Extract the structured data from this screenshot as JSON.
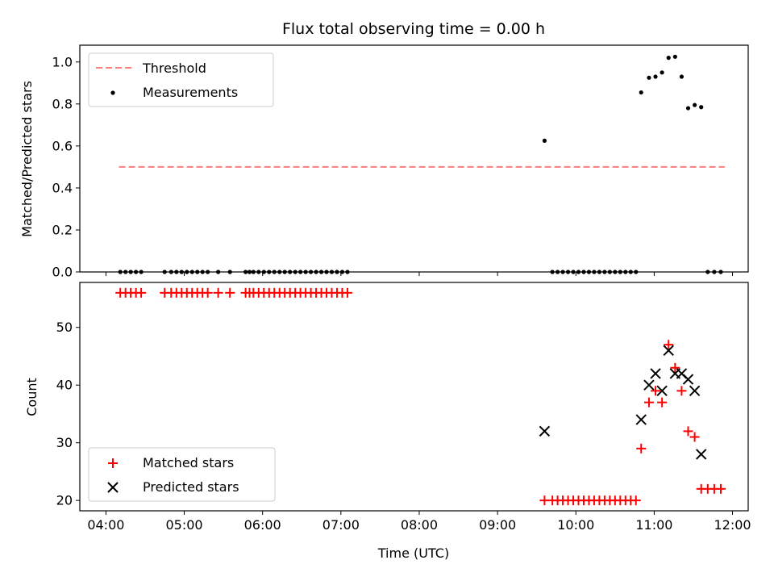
{
  "chart_data": [
    {
      "type": "scatter",
      "title": "Flux total observing time = 0.00 h",
      "ylabel": "Matched/Predicted stars",
      "xlim": [
        3.6667,
        12.2
      ],
      "ylim": [
        0.0,
        1.08
      ],
      "yticks": [
        0.0,
        0.2,
        0.4,
        0.6,
        0.8,
        1.0
      ],
      "ytick_labels": [
        "0.0",
        "0.2",
        "0.4",
        "0.6",
        "0.8",
        "1.0"
      ],
      "legend_position": "upper-left",
      "grid": false,
      "series": [
        {
          "name": "Threshold",
          "kind": "dashed-line",
          "color": "#ff7f7f",
          "x": [
            4.1667,
            11.9
          ],
          "y": [
            0.5,
            0.5
          ]
        },
        {
          "name": "Measurements",
          "kind": "dots",
          "color": "#000000",
          "x": [
            4.1833,
            4.25,
            4.3167,
            4.3833,
            4.45,
            4.75,
            4.8333,
            4.9,
            4.9667,
            5.0333,
            5.1,
            5.1667,
            5.2333,
            5.3,
            5.4333,
            5.5833,
            5.7833,
            5.8333,
            5.8833,
            5.95,
            6.0167,
            6.0833,
            6.15,
            6.2167,
            6.2833,
            6.35,
            6.4167,
            6.4833,
            6.55,
            6.6167,
            6.6833,
            6.75,
            6.8167,
            6.8833,
            6.95,
            7.0167,
            7.0833,
            9.6,
            9.7,
            9.7667,
            9.8333,
            9.9,
            9.9667,
            10.0333,
            10.1,
            10.1667,
            10.2333,
            10.3,
            10.3667,
            10.4333,
            10.5,
            10.5667,
            10.6333,
            10.7,
            10.7667,
            10.8333,
            10.9333,
            11.0167,
            11.1,
            11.1833,
            11.2667,
            11.35,
            11.4333,
            11.5167,
            11.6,
            11.6833,
            11.7667,
            11.85
          ],
          "y": [
            0.0,
            0.0,
            0.0,
            0.0,
            0.0,
            0.0,
            0.0,
            0.0,
            0.0,
            0.0,
            0.0,
            0.0,
            0.0,
            0.0,
            0.0,
            0.0,
            0.0,
            0.0,
            0.0,
            0.0,
            0.0,
            0.0,
            0.0,
            0.0,
            0.0,
            0.0,
            0.0,
            0.0,
            0.0,
            0.0,
            0.0,
            0.0,
            0.0,
            0.0,
            0.0,
            0.0,
            0.0,
            0.625,
            0.0,
            0.0,
            0.0,
            0.0,
            0.0,
            0.0,
            0.0,
            0.0,
            0.0,
            0.0,
            0.0,
            0.0,
            0.0,
            0.0,
            0.0,
            0.0,
            0.0,
            0.855,
            0.925,
            0.93,
            0.95,
            1.02,
            1.025,
            0.93,
            0.78,
            0.795,
            0.785,
            0.0,
            0.0,
            0.0
          ]
        }
      ]
    },
    {
      "type": "scatter",
      "xlabel": "Time (UTC)",
      "ylabel": "Count",
      "xlim": [
        3.6667,
        12.2
      ],
      "ylim": [
        18.2,
        57.8
      ],
      "xticks": [
        4,
        5,
        6,
        7,
        8,
        9,
        10,
        11,
        12
      ],
      "xtick_labels": [
        "04:00",
        "05:00",
        "06:00",
        "07:00",
        "08:00",
        "09:00",
        "10:00",
        "11:00",
        "12:00"
      ],
      "yticks": [
        20,
        30,
        40,
        50
      ],
      "ytick_labels": [
        "20",
        "30",
        "40",
        "50"
      ],
      "legend_position": "lower-left",
      "grid": false,
      "series": [
        {
          "name": "Matched stars",
          "marker": "plus",
          "color": "#ff0000",
          "x": [
            4.1833,
            4.25,
            4.3167,
            4.3833,
            4.45,
            4.75,
            4.8333,
            4.9,
            4.9667,
            5.0333,
            5.1,
            5.1667,
            5.2333,
            5.3,
            5.4333,
            5.5833,
            5.7833,
            5.8333,
            5.8833,
            5.95,
            6.0167,
            6.0833,
            6.15,
            6.2167,
            6.2833,
            6.35,
            6.4167,
            6.4833,
            6.55,
            6.6167,
            6.6833,
            6.75,
            6.8167,
            6.8833,
            6.95,
            7.0167,
            7.0833,
            9.6,
            9.7,
            9.7667,
            9.8333,
            9.9,
            9.9667,
            10.0333,
            10.1,
            10.1667,
            10.2333,
            10.3,
            10.3667,
            10.4333,
            10.5,
            10.5667,
            10.6333,
            10.7,
            10.7667,
            10.8333,
            10.9333,
            11.0167,
            11.1,
            11.1833,
            11.2667,
            11.35,
            11.4333,
            11.5167,
            11.6,
            11.6833,
            11.7667,
            11.85
          ],
          "y": [
            56,
            56,
            56,
            56,
            56,
            56,
            56,
            56,
            56,
            56,
            56,
            56,
            56,
            56,
            56,
            56,
            56,
            56,
            56,
            56,
            56,
            56,
            56,
            56,
            56,
            56,
            56,
            56,
            56,
            56,
            56,
            56,
            56,
            56,
            56,
            56,
            56,
            20,
            20,
            20,
            20,
            20,
            20,
            20,
            20,
            20,
            20,
            20,
            20,
            20,
            20,
            20,
            20,
            20,
            20,
            29,
            37,
            39,
            37,
            47,
            43,
            39,
            32,
            31,
            22,
            22,
            22,
            22
          ]
        },
        {
          "name": "Predicted stars",
          "marker": "x",
          "color": "#000000",
          "x": [
            9.6,
            10.8333,
            10.9333,
            11.0167,
            11.1,
            11.1833,
            11.2667,
            11.35,
            11.4333,
            11.5167,
            11.6
          ],
          "y": [
            32,
            34,
            40,
            42,
            39,
            46,
            42,
            42,
            41,
            39,
            28
          ]
        }
      ]
    }
  ]
}
